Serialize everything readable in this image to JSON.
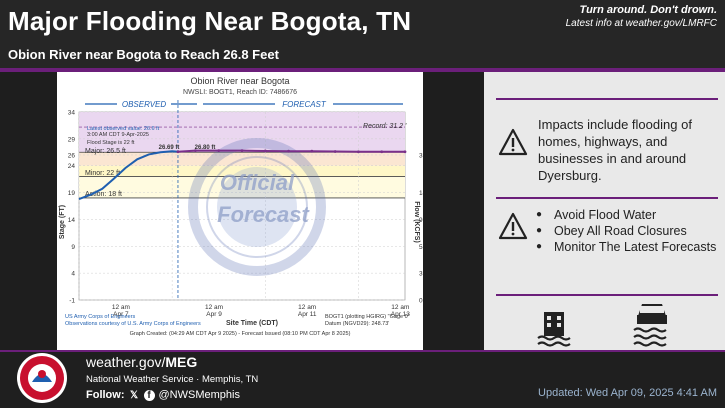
{
  "header": {
    "title": "Major Flooding Near Bogota, TN",
    "subtitle": "Obion River near Bogota to Reach 26.8 Feet",
    "tagline": "Turn around. Don't drown.",
    "latest_info": "Latest info at weather.gov/LMRFC"
  },
  "hydrograph": {
    "title": "Obion River near Bogota",
    "ids": "NWSLI: BOGT1, Reach ID: 7486676",
    "observed_label": "OBSERVED",
    "forecast_label": "FORECAST",
    "latest_obs_line1": "Latest observed value: 26.6 ft",
    "latest_obs_line2": "3:00 AM CDT 9-Apr-2025",
    "flood_stage_note": "Flood Stage is 22 ft",
    "record_label": "Record: 31.2 '",
    "major_label": "Major: 26.5 ft",
    "minor_label": "Minor: 22 ft",
    "action_label": "Action: 18 ft",
    "peak_obs_label": "26.69 ft",
    "peak_fcst_label": "26.80 ft",
    "watermark_line1": "Official",
    "watermark_line2": "Forecast",
    "y_axis_label": "Stage (FT)",
    "y2_axis_label": "Flow (KCFS)",
    "x_axis_label": "Site Time (CDT)",
    "credits_line1": "US Army Corps of Engineers",
    "credits_line2": "Observations courtesy of U.S. Army Corps of Engineers",
    "plot_info_line1": "BOGT1 (plotting HGIRG) \"Gage 0\"",
    "plot_info_line2": "Datum (NGVD29): 248.73'",
    "graph_created": "Graph Created: (04:29 AM CDT Apr 9 2025) - Forecast Issued (08:10 PM CDT Apr 8 2025)"
  },
  "chart_data": {
    "type": "line",
    "title": "Obion River near Bogota",
    "xlabel": "Site Time (CDT)",
    "ylabel": "Stage (FT)",
    "y2label": "Flow (KCFS)",
    "ylim": [
      -1,
      34
    ],
    "yticks": [
      "34",
      "29",
      "26",
      "24",
      "19",
      "14",
      "9",
      "4",
      "-1"
    ],
    "y2ticks": [
      "31.7",
      "14.9",
      "9.1",
      "5.65",
      "3",
      "0.96"
    ],
    "xticks": [
      {
        "line1": "12 am",
        "line2": "Apr 7"
      },
      {
        "line1": "12 am",
        "line2": "Apr 9"
      },
      {
        "line1": "12 am",
        "line2": "Apr 11"
      },
      {
        "line1": "12 am",
        "line2": "Apr 13"
      }
    ],
    "thresholds": {
      "action": 18,
      "minor": 22,
      "major": 26.5,
      "record": 31.2
    },
    "series": [
      {
        "name": "OBSERVED",
        "x": [
          0,
          0.25,
          0.5,
          0.75,
          1.0,
          1.25,
          1.5,
          1.75,
          2.0,
          2.125
        ],
        "values": [
          17.8,
          18.6,
          19.7,
          21.6,
          23.6,
          25.2,
          26.1,
          26.5,
          26.69,
          26.6
        ],
        "color": "#1f5fb0"
      },
      {
        "name": "FORECAST",
        "x": [
          2.125,
          2.5,
          3.0,
          3.5,
          4.0,
          4.5,
          5.0,
          5.5,
          6.0,
          6.5,
          7.0
        ],
        "values": [
          26.6,
          26.8,
          26.8,
          26.8,
          26.75,
          26.7,
          26.7,
          26.65,
          26.6,
          26.6,
          26.6
        ],
        "color": "#7a2f8a"
      }
    ]
  },
  "impacts": {
    "text": "Impacts include flooding of homes, highways, and businesses in and around Dyersburg.",
    "bullets": [
      "Avoid Flood Water",
      "Obey All Road Closures",
      "Monitor The Latest Forecasts"
    ]
  },
  "footer": {
    "url_prefix": "weather.gov/",
    "url_office": "MEG",
    "office": "National Weather Service · Memphis, TN",
    "follow_label": "Follow:",
    "handle": "@NWSMemphis",
    "updated": "Updated: Wed Apr 09, 2025 4:41 AM",
    "logo_text": "NATIONAL WEATHER SERVICE"
  },
  "colors": {
    "brand_purple": "#6b1f7a",
    "observed_blue": "#1f5fb0",
    "forecast_purple": "#7a2f8a",
    "major_band": "#ead7f0",
    "moderate_band": "#fbe6d2",
    "minor_band": "#fff7c7",
    "action_band": "#fffbe0"
  }
}
